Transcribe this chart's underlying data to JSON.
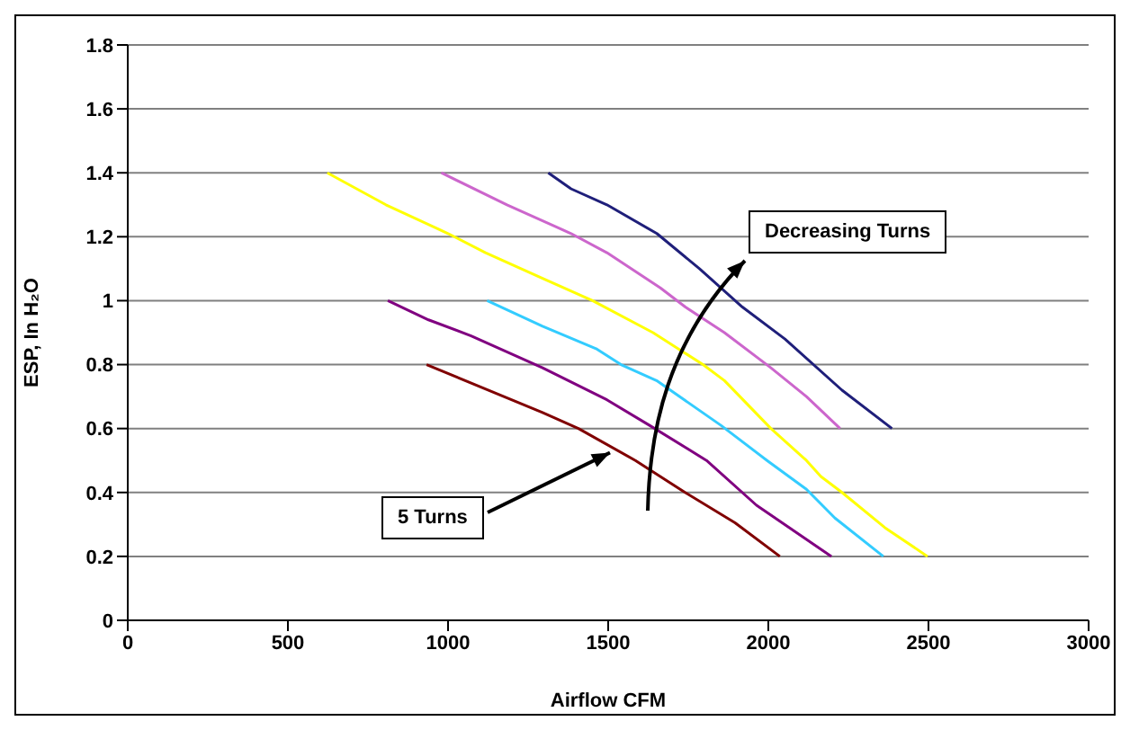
{
  "chart_data": {
    "type": "line",
    "xlabel": "Airflow CFM",
    "ylabel": "ESP, In H₂O",
    "xlim": [
      0,
      3000
    ],
    "xticks": [
      0,
      500,
      1000,
      1500,
      2000,
      2500,
      3000
    ],
    "ylim": [
      0,
      1.8
    ],
    "yticks": [
      0,
      0.2,
      0.4,
      0.6,
      0.8,
      1,
      1.2,
      1.4,
      1.6,
      1.8
    ],
    "grid": "y",
    "marker": "none",
    "line_style": "solid",
    "annotations": [
      {
        "text": "5 Turns",
        "x": 1500,
        "y": 0.53
      },
      "Decreasing Turns"
    ],
    "series": [
      {
        "color": "#800000",
        "x": [
          933,
          1295,
          1407,
          1585,
          1740,
          1896,
          2036
        ],
        "values": [
          0.8,
          0.65,
          0.6,
          0.5,
          0.4,
          0.305,
          0.2
        ]
      },
      {
        "color": "#800080",
        "x": [
          812,
          939,
          1072,
          1295,
          1496,
          1629,
          1807,
          1963,
          2197
        ],
        "values": [
          1.0,
          0.94,
          0.89,
          0.79,
          0.69,
          0.61,
          0.5,
          0.36,
          0.2
        ]
      },
      {
        "color": "#33ccff",
        "x": [
          1122,
          1295,
          1462,
          1540,
          1651,
          1852,
          1996,
          2119,
          2208,
          2359
        ],
        "values": [
          1.0,
          0.92,
          0.85,
          0.8,
          0.75,
          0.61,
          0.5,
          0.41,
          0.32,
          0.2
        ]
      },
      {
        "color": "#ffff00",
        "x": [
          623,
          806,
          1000,
          1117,
          1295,
          1451,
          1640,
          1796,
          1863,
          2008,
          2119,
          2164,
          2230,
          2364,
          2497
        ],
        "values": [
          1.4,
          1.3,
          1.21,
          1.15,
          1.07,
          1.0,
          0.9,
          0.8,
          0.75,
          0.6,
          0.5,
          0.45,
          0.4,
          0.29,
          0.2
        ]
      },
      {
        "color": "#cc66cc",
        "x": [
          979,
          1184,
          1384,
          1496,
          1663,
          1741,
          1863,
          2008,
          2119,
          2224
        ],
        "values": [
          1.4,
          1.3,
          1.21,
          1.15,
          1.04,
          0.98,
          0.9,
          0.79,
          0.7,
          0.6
        ]
      },
      {
        "color": "#1f1f7a",
        "x": [
          1313,
          1384,
          1496,
          1652,
          1785,
          1919,
          2052,
          2230,
          2386
        ],
        "values": [
          1.4,
          1.35,
          1.3,
          1.21,
          1.1,
          0.98,
          0.88,
          0.72,
          0.6
        ]
      }
    ]
  }
}
